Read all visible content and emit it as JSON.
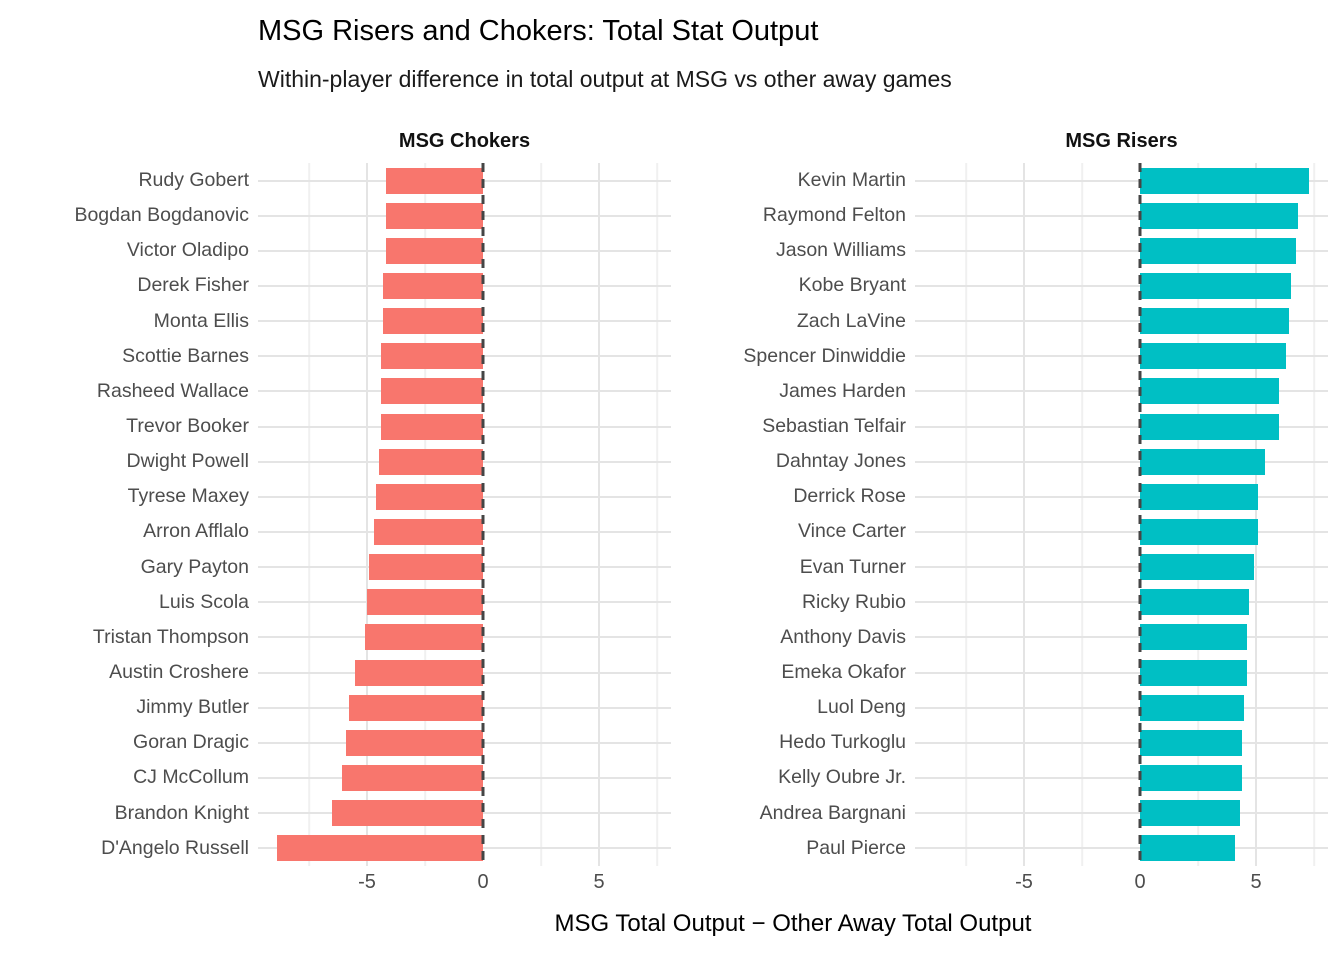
{
  "title": "MSG Risers and Chokers: Total Stat Output",
  "subtitle": "Within-player difference in total output at MSG vs other away games",
  "xlabel": "MSG Total Output − Other Away Total Output",
  "colors": {
    "chokers_bar": "#F8766D",
    "risers_bar": "#00BFC4",
    "grid_major": "#E4E4E4",
    "grid_minor": "#F0F0F0",
    "zero_line": "#454545",
    "label_text": "#4D4D4D",
    "background": "#FFFFFF"
  },
  "chart_data": {
    "type": "bar",
    "orientation": "horizontal",
    "grid": true,
    "legend": "none",
    "xlim": [
      -9.7,
      8.1
    ],
    "x_ticks": [
      -5,
      0,
      5
    ],
    "x_tick_labels": [
      "-5",
      "0",
      "5"
    ],
    "x_minor_gridlines": [
      -7.5,
      -2.5,
      2.5,
      7.5
    ],
    "zero_reference_line": {
      "x": 0,
      "style": "dashed"
    },
    "facets": [
      {
        "label": "MSG Chokers",
        "bar_color": "#F8766D",
        "categories": [
          "Rudy Gobert",
          "Bogdan Bogdanovic",
          "Victor Oladipo",
          "Derek Fisher",
          "Monta Ellis",
          "Scottie Barnes",
          "Rasheed Wallace",
          "Trevor Booker",
          "Dwight Powell",
          "Tyrese Maxey",
          "Arron Afflalo",
          "Gary Payton",
          "Luis Scola",
          "Tristan Thompson",
          "Austin Croshere",
          "Jimmy Butler",
          "Goran Dragic",
          "CJ McCollum",
          "Brandon Knight",
          "D'Angelo Russell"
        ],
        "values": [
          -4.2,
          -4.2,
          -4.2,
          -4.3,
          -4.3,
          -4.4,
          -4.4,
          -4.4,
          -4.5,
          -4.6,
          -4.7,
          -4.9,
          -5.0,
          -5.1,
          -5.5,
          -5.8,
          -5.9,
          -6.1,
          -6.5,
          -8.9
        ]
      },
      {
        "label": "MSG Risers",
        "bar_color": "#00BFC4",
        "categories": [
          "Kevin Martin",
          "Raymond Felton",
          "Jason Williams",
          "Kobe Bryant",
          "Zach LaVine",
          "Spencer Dinwiddie",
          "James Harden",
          "Sebastian Telfair",
          "Dahntay Jones",
          "Derrick Rose",
          "Vince Carter",
          "Evan Turner",
          "Ricky Rubio",
          "Anthony Davis",
          "Emeka Okafor",
          "Luol Deng",
          "Hedo Turkoglu",
          "Kelly Oubre Jr.",
          "Andrea Bargnani",
          "Paul Pierce"
        ],
        "values": [
          7.3,
          6.8,
          6.7,
          6.5,
          6.4,
          6.3,
          6.0,
          6.0,
          5.4,
          5.1,
          5.1,
          4.9,
          4.7,
          4.6,
          4.6,
          4.5,
          4.4,
          4.4,
          4.3,
          4.1
        ]
      }
    ]
  }
}
